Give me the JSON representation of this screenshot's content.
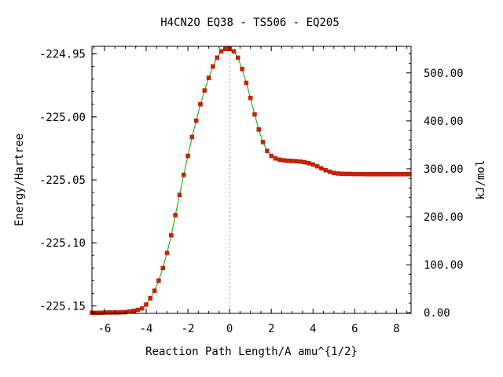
{
  "chart_data": {
    "type": "line",
    "title": "H4CN2O   EQ38 - TS506 - EQ205",
    "xlabel": "Reaction Path Length/A amu^{1/2}",
    "ylabel": "Energy/Hartree",
    "y2label": "kJ/mol",
    "xlim": [
      -6.6,
      8.7
    ],
    "ylim": [
      -225.156,
      -224.944
    ],
    "xticks": [
      -6,
      -4,
      -2,
      0,
      2,
      4,
      6,
      8
    ],
    "xtick_labels": [
      "-6",
      "-4",
      "-2",
      "0",
      "2",
      "4",
      "6",
      "8"
    ],
    "yticks": [
      -225.15,
      -225.1,
      -225.05,
      -225.0,
      -224.95
    ],
    "ytick_labels": [
      "-225.15",
      "-225.10",
      "-225.05",
      "-225.00",
      "-224.95"
    ],
    "y2ticks": [
      0,
      100,
      200,
      300,
      400,
      500
    ],
    "y2tick_labels": [
      "0.00",
      "100.00",
      "200.00",
      "300.00",
      "400.00",
      "500.00"
    ],
    "y2_reference_hartree": -225.1555,
    "hartree_to_kjmol": 2625.5,
    "ts_marker_x": 0,
    "grid": false,
    "colors": {
      "line": "#00aa00",
      "marker": "#cc2200",
      "ts_line": "#999999"
    },
    "series": [
      {
        "x": [
          -6.6,
          -6.4,
          -6.2,
          -6.0,
          -5.8,
          -5.6,
          -5.4,
          -5.2,
          -5.0,
          -4.8,
          -4.6,
          -4.4,
          -4.2,
          -4.0,
          -3.8,
          -3.6,
          -3.4,
          -3.2,
          -3.0,
          -2.8,
          -2.6,
          -2.4,
          -2.2,
          -2.0,
          -1.8,
          -1.6,
          -1.4,
          -1.2,
          -1.0,
          -0.8,
          -0.6,
          -0.4,
          -0.2,
          0.0,
          0.2,
          0.4,
          0.6,
          0.8,
          1.0,
          1.2,
          1.4,
          1.6,
          1.8,
          2.0,
          2.2,
          2.4,
          2.6,
          2.8,
          3.0,
          3.2,
          3.4,
          3.6,
          3.8,
          4.0,
          4.2,
          4.4,
          4.6,
          4.8,
          5.0,
          5.2,
          5.4,
          5.6,
          5.8,
          6.0,
          6.2,
          6.4,
          6.6,
          6.8,
          7.0,
          7.2,
          7.4,
          7.6,
          7.8,
          8.0,
          8.2,
          8.4,
          8.6
        ],
        "y": [
          -225.1555,
          -225.1556,
          -225.1555,
          -225.1554,
          -225.1553,
          -225.1553,
          -225.1553,
          -225.1552,
          -225.155,
          -225.1545,
          -225.154,
          -225.1532,
          -225.152,
          -225.149,
          -225.144,
          -225.138,
          -225.13,
          -225.12,
          -225.108,
          -225.094,
          -225.078,
          -225.062,
          -225.046,
          -225.031,
          -225.016,
          -225.003,
          -224.99,
          -224.979,
          -224.969,
          -224.96,
          -224.953,
          -224.948,
          -224.946,
          -224.946,
          -224.948,
          -224.953,
          -224.962,
          -224.973,
          -224.985,
          -224.998,
          -225.01,
          -225.02,
          -225.027,
          -225.031,
          -225.033,
          -225.034,
          -225.0345,
          -225.0348,
          -225.035,
          -225.0352,
          -225.0355,
          -225.036,
          -225.0368,
          -225.0378,
          -225.0392,
          -225.0408,
          -225.0423,
          -225.0435,
          -225.0445,
          -225.045,
          -225.0452,
          -225.0453,
          -225.0453,
          -225.0454,
          -225.0454,
          -225.0454,
          -225.0455,
          -225.0455,
          -225.0455,
          -225.0455,
          -225.0455,
          -225.0455,
          -225.0455,
          -225.0455,
          -225.0455,
          -225.0455,
          -225.0455
        ]
      }
    ]
  }
}
